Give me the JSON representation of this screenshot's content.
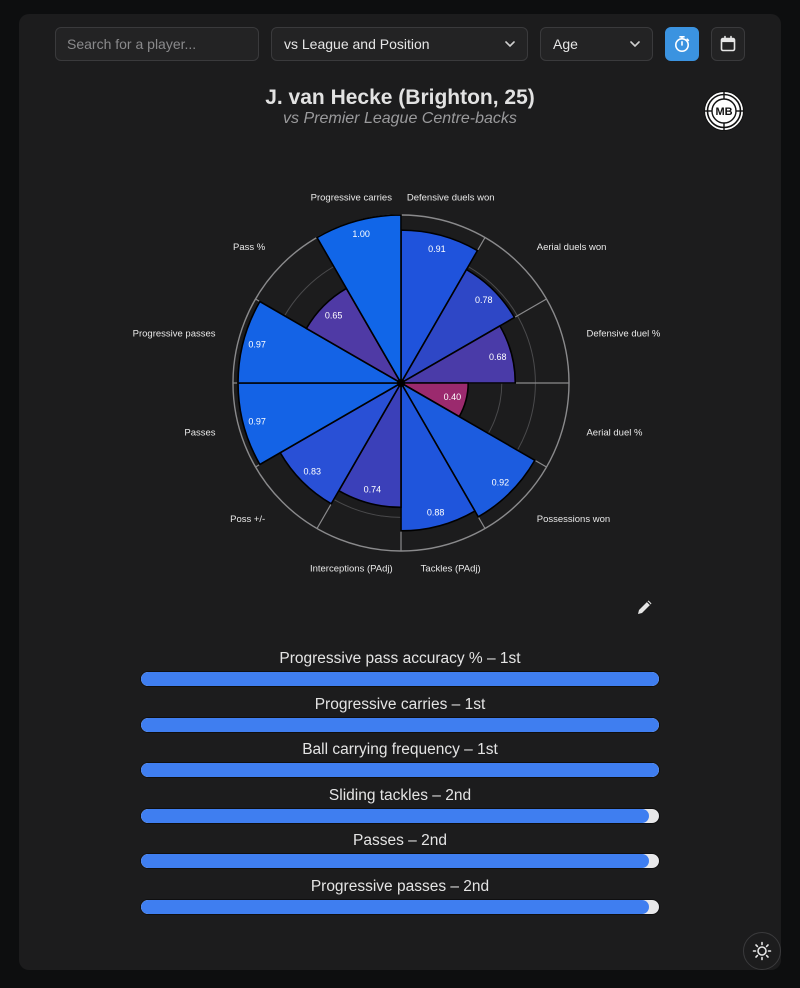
{
  "toolbar": {
    "search_placeholder": "Search for a player...",
    "comparison_select": "vs League and Position",
    "age_select": "Age",
    "timer_icon": "stopwatch-icon",
    "calendar_icon": "calendar-icon"
  },
  "header": {
    "title": "J. van Hecke (Brighton, 25)",
    "subtitle": "vs Premier League Centre-backs",
    "logo_text": "MB"
  },
  "colors": {
    "background": "#1c1c1d",
    "accent": "#3b93e0",
    "bar_fill": "#3f7ef0",
    "bar_track": "#e8e8ea"
  },
  "chart_data": {
    "type": "polar-area",
    "labels": [
      "Defensive duels won",
      "Aerial duels won",
      "Defensive duel %",
      "Aerial duel %",
      "Possessions won",
      "Tackles (PAdj)",
      "Interceptions (PAdj)",
      "Poss +/-",
      "Passes",
      "Progressive passes",
      "Pass %",
      "Progressive carries"
    ],
    "values": [
      0.91,
      0.78,
      0.68,
      0.4,
      0.92,
      0.88,
      0.74,
      0.83,
      0.97,
      0.97,
      0.65,
      1.0
    ],
    "value_labels": [
      "0.91",
      "0.78",
      "0.68",
      "0.40",
      "0.92",
      "0.88",
      "0.74",
      "0.83",
      "0.97",
      "0.97",
      "0.65",
      "1.00"
    ],
    "range": [
      0,
      1
    ],
    "grid": true,
    "colors": [
      "#1f53dc",
      "#2e47c6",
      "#4a3ba8",
      "#9b2a6e",
      "#1c5cdf",
      "#1f55dc",
      "#3b40b9",
      "#2950d6",
      "#1463e6",
      "#1463e6",
      "#4f3aa5",
      "#1166e8"
    ]
  },
  "ranking_bars": [
    {
      "label": "Progressive pass accuracy % – 1st",
      "fraction": 1.0
    },
    {
      "label": "Progressive carries – 1st",
      "fraction": 1.0
    },
    {
      "label": "Ball carrying frequency – 1st",
      "fraction": 1.0
    },
    {
      "label": "Sliding tackles – 2nd",
      "fraction": 0.98
    },
    {
      "label": "Passes – 2nd",
      "fraction": 0.98
    },
    {
      "label": "Progressive passes – 2nd",
      "fraction": 0.98
    }
  ],
  "footer": {
    "theme_icon": "sun-icon",
    "edit_icon": "pencil-icon"
  }
}
